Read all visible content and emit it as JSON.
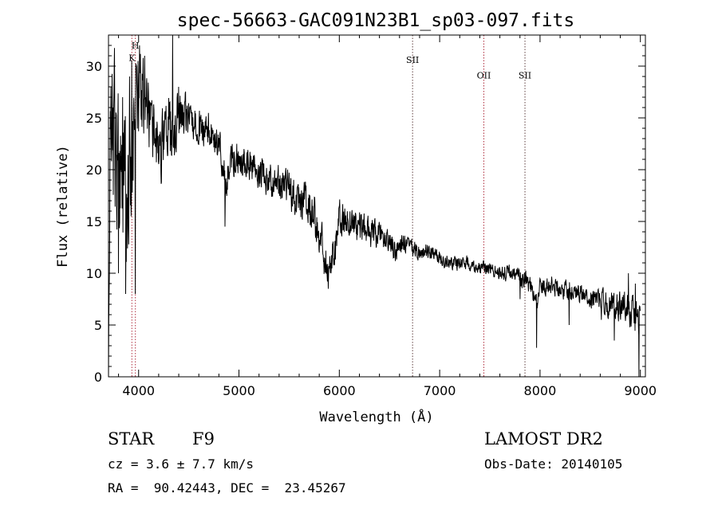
{
  "chart_data": {
    "type": "line",
    "title": "spec-56663-GAC091N23B1_sp03-097.fits",
    "xlabel": "Wavelength (Å)",
    "ylabel": "Flux (relative)",
    "xlim": [
      3700,
      9050
    ],
    "ylim": [
      0,
      33
    ],
    "x_ticks": [
      4000,
      5000,
      6000,
      7000,
      8000,
      9000
    ],
    "y_ticks": [
      0,
      5,
      10,
      15,
      20,
      25,
      30
    ],
    "grid": false,
    "series": [
      {
        "anchors_x": [
          3700,
          3720,
          3750,
          3800,
          3850,
          3900,
          3950,
          3990,
          4050,
          4100,
          4200,
          4300,
          4350,
          4400,
          4500,
          4600,
          4700,
          4800,
          4850,
          4870,
          4900,
          5000,
          5100,
          5200,
          5300,
          5400,
          5500,
          5600,
          5700,
          5800,
          5850,
          5890,
          5950,
          6000,
          6100,
          6200,
          6300,
          6400,
          6500,
          6563,
          6600,
          6700,
          6800,
          6900,
          7000,
          7100,
          7200,
          7300,
          7400,
          7500,
          7600,
          7700,
          7750,
          7800,
          7850,
          7900,
          7960,
          8000,
          8100,
          8200,
          8300,
          8400,
          8500,
          8600,
          8700,
          8800,
          8850,
          8900,
          8950,
          9000
        ],
        "anchors_y": [
          2,
          22,
          24,
          18,
          20,
          17,
          22,
          26,
          27,
          26,
          22,
          24,
          23,
          25.5,
          25,
          24,
          24,
          22.5,
          20,
          18,
          21,
          21,
          20.5,
          20,
          19,
          18.5,
          18,
          17,
          16,
          14,
          12,
          10,
          12.5,
          15,
          15,
          14.5,
          14,
          13.5,
          13,
          12,
          13,
          12.5,
          12,
          12,
          11.5,
          11,
          11,
          11,
          10.5,
          10.5,
          10,
          10,
          10,
          9.5,
          9.5,
          9,
          7,
          8.5,
          9,
          8.5,
          8.5,
          8,
          7.5,
          7.5,
          7,
          7,
          7,
          6.5,
          6,
          5.5
        ],
        "noise_x": [
          3700,
          3800,
          3950,
          4100,
          4300,
          4500,
          4800,
          5200,
          5800,
          6000,
          6500,
          7000,
          7500,
          8000,
          8500,
          8900,
          9050
        ],
        "noise_amp": [
          6,
          7,
          5,
          3,
          3,
          1.5,
          1.5,
          1.4,
          2,
          1.6,
          1,
          0.6,
          0.6,
          0.8,
          0.8,
          1.4,
          1.8
        ],
        "spikes": [
          [
            3725,
            28
          ],
          [
            3745,
            26
          ],
          [
            3800,
            10
          ],
          [
            3840,
            27
          ],
          [
            3870,
            8
          ],
          [
            3910,
            29
          ],
          [
            3930,
            30.5
          ],
          [
            3968,
            8
          ],
          [
            3980,
            30
          ],
          [
            4010,
            32
          ],
          [
            4060,
            31
          ],
          [
            4190,
            23
          ],
          [
            4340,
            33
          ],
          [
            4400,
            28
          ],
          [
            4861,
            14.5
          ],
          [
            5890,
            8.5
          ],
          [
            7800,
            7.5
          ],
          [
            7965,
            2.8
          ],
          [
            8070,
            9.5
          ],
          [
            8290,
            5
          ],
          [
            8610,
            5.5
          ],
          [
            8740,
            3.5
          ],
          [
            8880,
            10
          ],
          [
            8950,
            9
          ],
          [
            8985,
            0
          ]
        ]
      }
    ],
    "lines": [
      {
        "label": "H",
        "x": 3968,
        "label_y": 31.7,
        "color": "#b03040"
      },
      {
        "label": "K",
        "x": 3933,
        "label_y": 30.5,
        "color": "#b03040"
      },
      {
        "label": "SII",
        "x": 6730,
        "label_y": 30.3,
        "color": "#604040"
      },
      {
        "label": "OII",
        "x": 7440,
        "label_y": 28.8,
        "color": "#b03040"
      },
      {
        "label": "SII",
        "x": 7850,
        "label_y": 28.8,
        "color": "#604040"
      }
    ]
  },
  "info": {
    "object_class": "STAR",
    "subclass": "F9",
    "survey": "LAMOST DR2",
    "cz": "cz = 3.6 ± 7.7 km/s",
    "obs_date": "Obs-Date: 20140105",
    "coords": "RA =  90.42443, DEC =  23.45267"
  }
}
